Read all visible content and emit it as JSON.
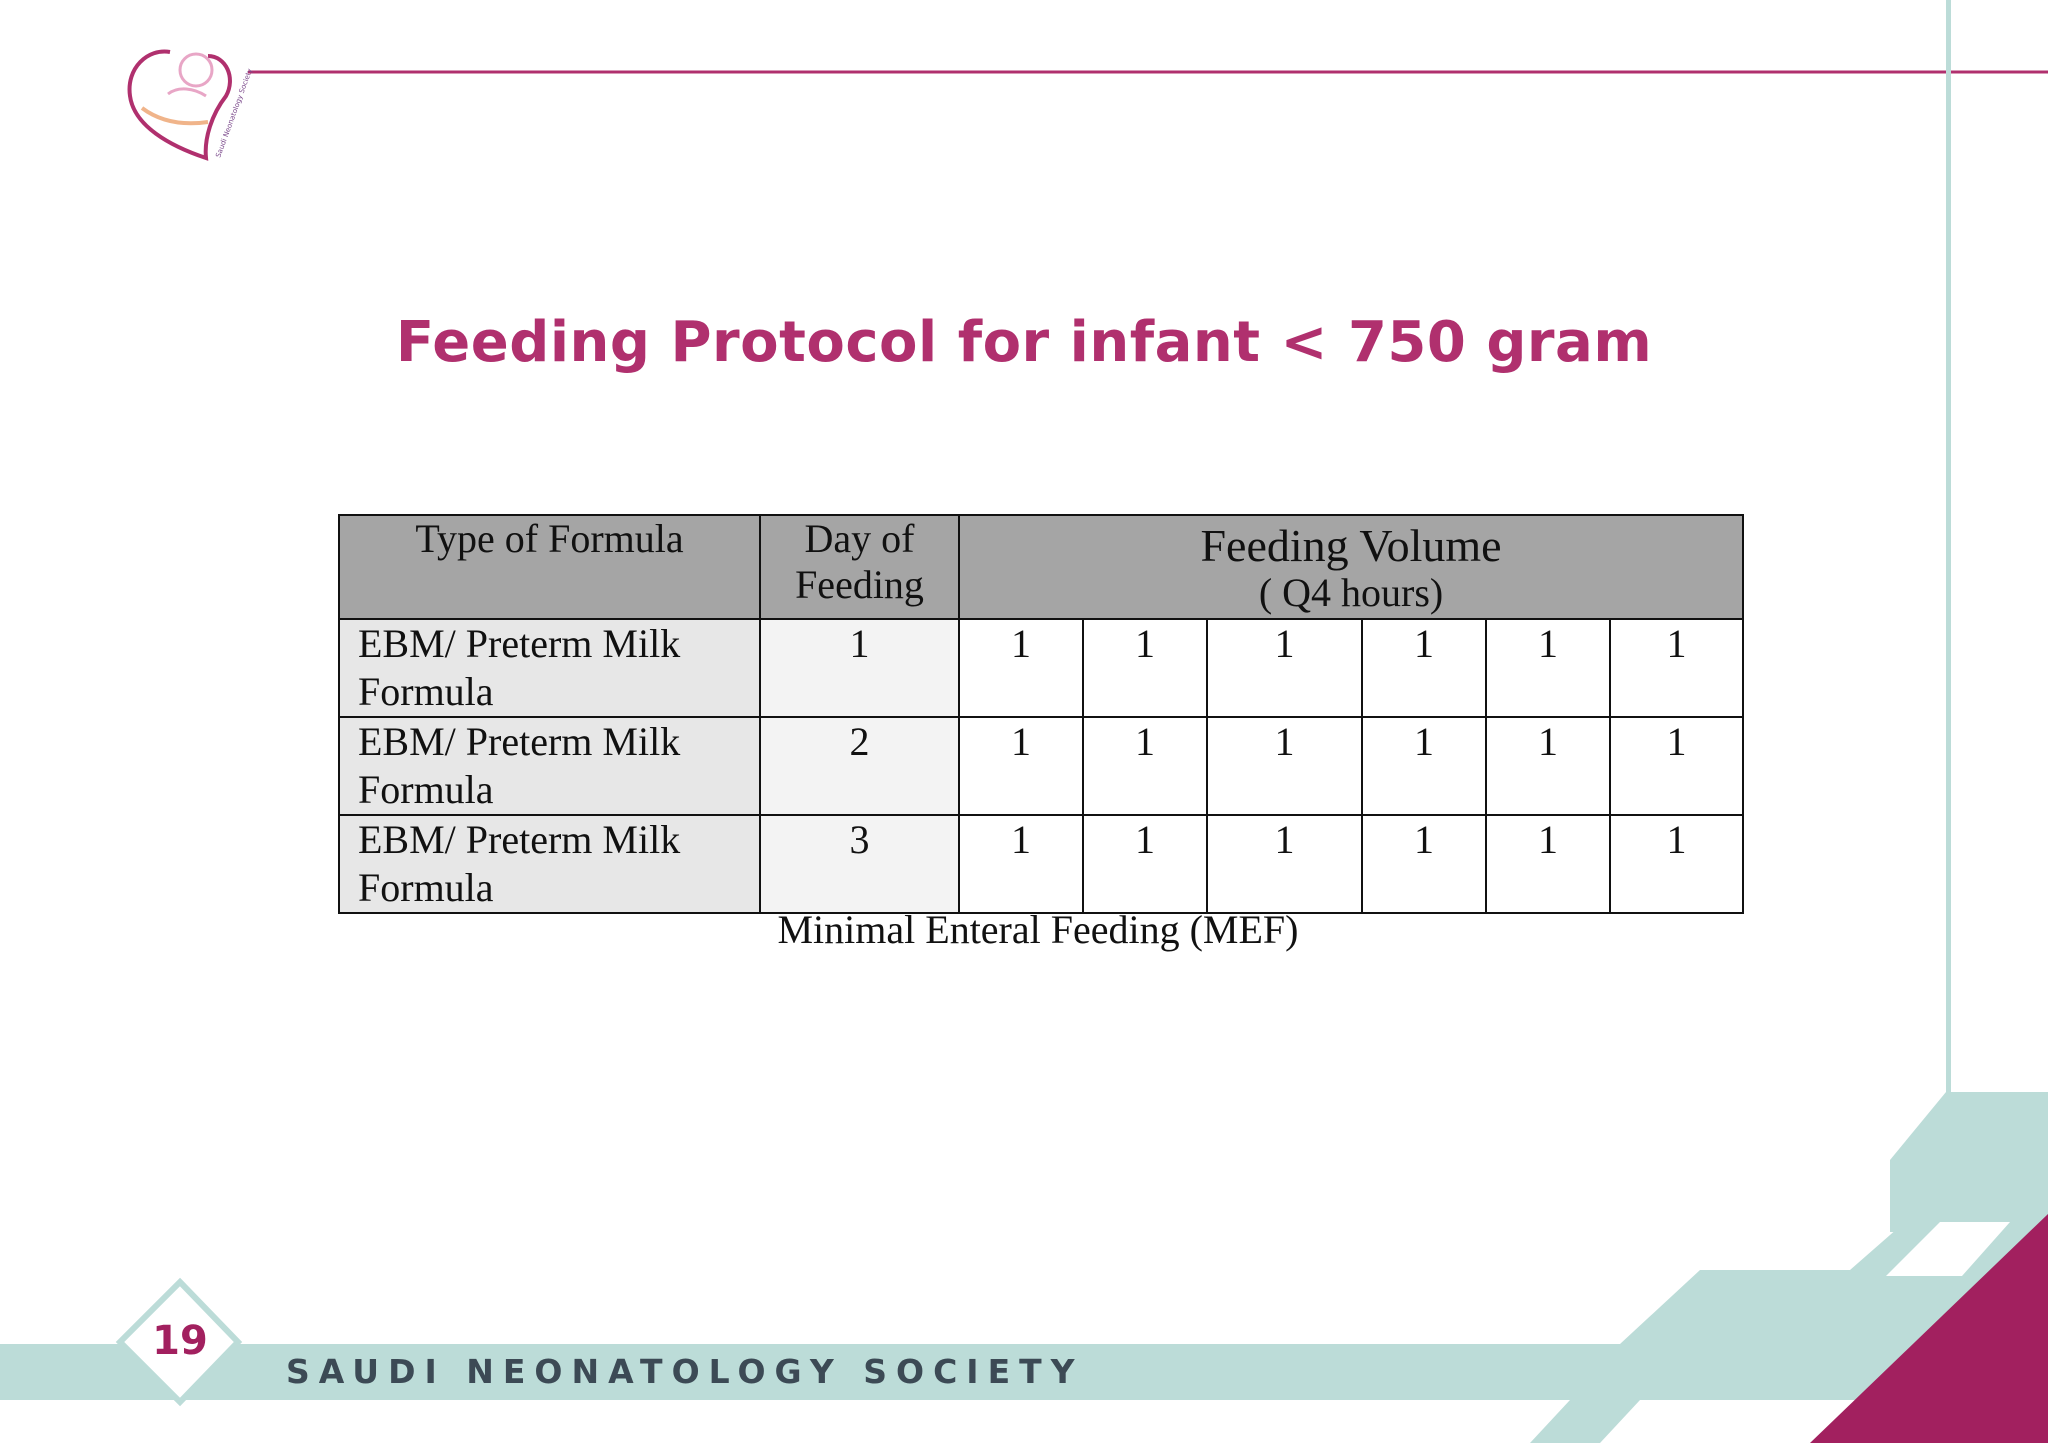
{
  "slide": {
    "title": "Feeding Protocol for infant < 750 gram",
    "caption": "Minimal Enteral Feeding (MEF)",
    "page_number": "19",
    "footer": "SAUDI NEONATOLOGY SOCIETY",
    "logo": {
      "icon": "saudi-neonatology-society-logo",
      "text": "Saudi Neonatology Society"
    }
  },
  "table": {
    "headers": {
      "type": "Type of Formula",
      "day": "Day of Feeding",
      "volume": "Feeding Volume",
      "volume_sub": "( Q4 hours)"
    },
    "rows": [
      {
        "type": "EBM/ Preterm Milk Formula",
        "day": "1",
        "volumes": [
          "1",
          "1",
          "1",
          "1",
          "1",
          "1"
        ]
      },
      {
        "type": "EBM/ Preterm Milk Formula",
        "day": "2",
        "volumes": [
          "1",
          "1",
          "1",
          "1",
          "1",
          "1"
        ]
      },
      {
        "type": "EBM/ Preterm Milk Formula",
        "day": "3",
        "volumes": [
          "1",
          "1",
          "1",
          "1",
          "1",
          "1"
        ]
      }
    ]
  },
  "colors": {
    "accent_magenta": "#b0306e",
    "dark_magenta": "#a2205f",
    "teal_light": "#bcdcd8",
    "header_gray": "#a5a5a5"
  }
}
